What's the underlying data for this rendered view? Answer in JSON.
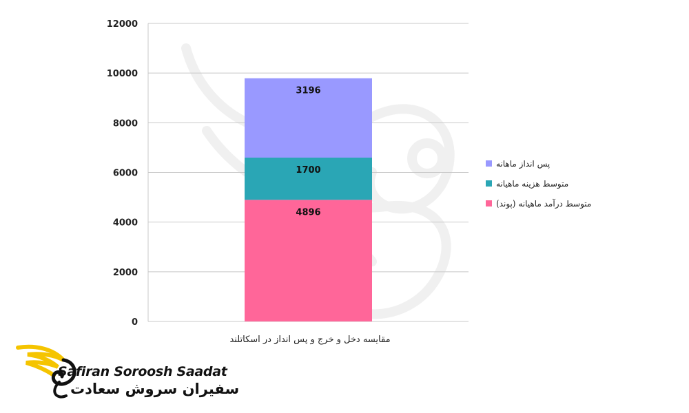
{
  "chart_data": {
    "type": "bar",
    "stacked": true,
    "categories": [
      "مقایسه دخل و خرج و پس انداز در اسکاتلند"
    ],
    "series": [
      {
        "name": "متوسط درآمد ماهیانه (پوند)",
        "values": [
          4896
        ],
        "color": "#ff6699"
      },
      {
        "name": "متوسط هزینه ماهیانه",
        "values": [
          1700
        ],
        "color": "#2aa6b5"
      },
      {
        "name": "پس انداز ماهانه",
        "values": [
          3196
        ],
        "color": "#9999ff"
      }
    ],
    "ylim": [
      0,
      12000
    ],
    "yticks": [
      0,
      2000,
      4000,
      6000,
      8000,
      10000,
      12000
    ],
    "grid": true,
    "legend": "right",
    "title": "",
    "xlabel": "",
    "ylabel": ""
  },
  "branding": {
    "latin_name": "Safiran Soroosh Saadat",
    "farsi_name": "سفیران سروش سعادت",
    "accent_color": "#f5c400"
  }
}
